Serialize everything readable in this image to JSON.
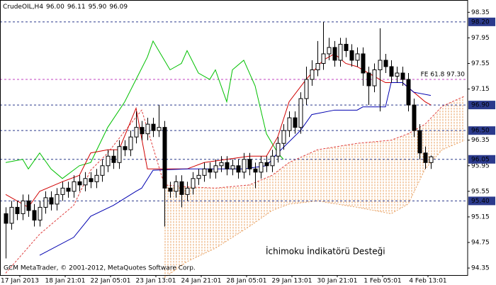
{
  "chart_data": {
    "type": "candlestick",
    "title": "CrudeOIL,H4",
    "last_values_labels": [
      "96.00",
      "96.11",
      "95.90",
      "96.09"
    ],
    "footer": "GCM MetaTrader, © 2001-2012, MetaQuotes Software Corp.",
    "annotation": "İchimoku İndikatörü Desteği",
    "ylim": [
      94.24,
      98.52
    ],
    "xlim": [
      -1,
      81.5
    ],
    "yticks": [
      98.35,
      97.95,
      97.55,
      97.15,
      96.35,
      95.95,
      95.55,
      95.15,
      94.75,
      94.35
    ],
    "xticks": [
      {
        "value": 3,
        "label": "17 Jan 2013"
      },
      {
        "value": 11,
        "label": "18 Jan 21:01"
      },
      {
        "value": 19,
        "label": "22 Jan 05:01"
      },
      {
        "value": 27,
        "label": "23 Jan 13:01"
      },
      {
        "value": 35,
        "label": "24 Jan 21:01"
      },
      {
        "value": 43,
        "label": "28 Jan 05:01"
      },
      {
        "value": 51,
        "label": "29 Jan 13:01"
      },
      {
        "value": 59,
        "label": "30 Jan 21:01"
      },
      {
        "value": 67,
        "label": "1 Feb 05:01"
      },
      {
        "value": 75,
        "label": "4 Feb 13:01"
      }
    ],
    "candles": {
      "up_color": "#ffffff",
      "down_color": "#000000",
      "edge_color": "#000000",
      "open": [
        95.2,
        95.05,
        95.3,
        95.2,
        95.4,
        95.25,
        95.1,
        95.3,
        95.45,
        95.35,
        95.5,
        95.6,
        95.55,
        95.7,
        95.65,
        95.75,
        95.7,
        95.8,
        95.95,
        96.1,
        96.0,
        96.25,
        96.2,
        96.4,
        96.55,
        96.45,
        96.6,
        96.5,
        96.55,
        95.6,
        95.55,
        95.7,
        95.5,
        95.6,
        95.75,
        95.8,
        95.9,
        95.85,
        95.95,
        96.0,
        95.9,
        95.95,
        95.85,
        96.05,
        95.9,
        95.85,
        96.0,
        95.95,
        96.1,
        96.3,
        96.5,
        96.7,
        96.55,
        97.0,
        97.3,
        97.45,
        97.55,
        97.7,
        97.8,
        97.6,
        97.85,
        97.75,
        97.6,
        97.7,
        97.4,
        97.2,
        97.45,
        97.6,
        97.5,
        97.35,
        97.4,
        97.3,
        96.9,
        96.5,
        96.15,
        96.0
      ],
      "high": [
        95.3,
        95.4,
        95.4,
        95.5,
        95.5,
        95.35,
        95.4,
        95.55,
        95.55,
        95.6,
        95.7,
        95.7,
        95.8,
        95.8,
        95.85,
        95.85,
        95.9,
        96.05,
        96.2,
        96.2,
        96.35,
        96.35,
        96.5,
        96.8,
        96.65,
        96.7,
        96.7,
        96.9,
        96.65,
        95.7,
        95.8,
        95.8,
        95.7,
        95.85,
        95.9,
        96.0,
        96.0,
        96.05,
        96.1,
        96.1,
        96.05,
        96.05,
        96.15,
        96.15,
        96.0,
        96.1,
        96.1,
        96.2,
        96.4,
        96.6,
        96.8,
        96.8,
        97.1,
        97.5,
        97.6,
        97.9,
        98.2,
        97.95,
        97.9,
        97.95,
        97.95,
        97.85,
        97.8,
        97.8,
        97.5,
        97.55,
        98.1,
        97.7,
        97.6,
        97.5,
        97.5,
        97.4,
        97.0,
        96.6,
        96.25,
        96.11
      ],
      "low": [
        94.5,
        94.95,
        95.1,
        95.1,
        95.15,
        95.0,
        95.0,
        95.2,
        95.25,
        95.25,
        95.4,
        95.45,
        95.45,
        95.55,
        95.55,
        95.6,
        95.6,
        95.7,
        95.85,
        95.9,
        95.9,
        96.1,
        96.1,
        96.3,
        96.35,
        96.35,
        96.4,
        96.4,
        95.0,
        95.45,
        95.45,
        95.3,
        95.4,
        95.5,
        95.65,
        95.7,
        95.75,
        95.75,
        95.85,
        95.8,
        95.8,
        95.75,
        95.75,
        95.8,
        95.6,
        95.75,
        95.85,
        95.85,
        96.0,
        96.2,
        96.4,
        96.45,
        96.45,
        96.9,
        97.2,
        97.35,
        97.45,
        97.6,
        97.5,
        97.5,
        97.65,
        97.5,
        97.5,
        97.2,
        96.9,
        97.1,
        96.8,
        97.4,
        97.25,
        97.25,
        97.2,
        96.8,
        96.4,
        96.05,
        95.9,
        95.9
      ],
      "close": [
        95.05,
        95.3,
        95.2,
        95.4,
        95.25,
        95.1,
        95.3,
        95.45,
        95.35,
        95.5,
        95.6,
        95.55,
        95.7,
        95.65,
        95.75,
        95.7,
        95.8,
        95.95,
        96.1,
        96.0,
        96.25,
        96.2,
        96.4,
        96.55,
        96.45,
        96.6,
        96.5,
        96.55,
        95.6,
        95.55,
        95.7,
        95.5,
        95.6,
        95.75,
        95.8,
        95.9,
        95.85,
        95.95,
        96.0,
        95.9,
        95.95,
        95.85,
        96.05,
        95.9,
        95.85,
        96.0,
        95.95,
        96.1,
        96.3,
        96.5,
        96.7,
        96.55,
        97.0,
        97.3,
        97.45,
        97.55,
        97.7,
        97.8,
        97.6,
        97.85,
        97.75,
        97.6,
        97.7,
        97.4,
        97.2,
        97.45,
        97.6,
        97.5,
        97.35,
        97.4,
        97.3,
        96.9,
        96.5,
        96.15,
        96.0,
        96.09
      ]
    },
    "cloud": {
      "color": "#e8a060",
      "x": [
        0,
        6,
        12,
        15,
        18,
        21,
        24,
        28,
        32,
        37,
        43,
        47,
        50,
        55,
        62,
        68,
        71,
        74,
        77,
        81
      ],
      "span_a": [
        94.27,
        94.88,
        95.33,
        95.88,
        96.15,
        96.49,
        96.82,
        95.65,
        95.62,
        95.6,
        95.65,
        95.8,
        96.0,
        96.2,
        96.3,
        96.35,
        96.45,
        96.6,
        96.88,
        97.04
      ],
      "span_b": [
        null,
        null,
        null,
        null,
        null,
        null,
        null,
        94.2,
        94.45,
        94.66,
        95.0,
        95.25,
        95.35,
        95.4,
        95.3,
        95.2,
        95.35,
        95.9,
        96.2,
        96.35
      ]
    },
    "series": [
      {
        "color": "#00c000",
        "x": [
          0,
          3,
          4,
          6,
          8,
          10,
          13,
          15,
          18,
          21,
          23,
          25,
          26,
          27,
          29,
          31,
          32,
          34,
          36,
          37,
          39,
          40,
          42,
          44,
          46,
          48,
          49
        ],
        "values": [
          96.0,
          96.05,
          95.9,
          96.15,
          95.9,
          95.75,
          95.95,
          96.0,
          96.55,
          96.95,
          97.3,
          97.65,
          97.9,
          97.75,
          97.45,
          97.55,
          97.75,
          97.4,
          97.3,
          97.45,
          96.95,
          97.45,
          97.6,
          97.2,
          96.45,
          96.15,
          96.05
        ]
      },
      {
        "color": "#d00000",
        "x": [
          0,
          4,
          6,
          10,
          13,
          15,
          18,
          20,
          23,
          25,
          27,
          32,
          35,
          39,
          43,
          46,
          48,
          50,
          53,
          56,
          58,
          60,
          62,
          64,
          67,
          70,
          72,
          74,
          75
        ],
        "values": [
          95.5,
          95.3,
          95.55,
          95.7,
          95.8,
          96.15,
          96.2,
          96.2,
          96.85,
          95.9,
          95.9,
          95.9,
          96.0,
          96.05,
          96.1,
          96.1,
          96.4,
          96.95,
          97.3,
          97.6,
          97.7,
          97.55,
          97.5,
          97.4,
          97.25,
          97.25,
          97.1,
          96.95,
          96.9
        ]
      },
      {
        "color": "#0000b0",
        "x": [
          6,
          12,
          15,
          19,
          23,
          24,
          26,
          32,
          37,
          42,
          46,
          48,
          52,
          54,
          58,
          62,
          63,
          67,
          68,
          70,
          72,
          75
        ],
        "values": [
          94.55,
          94.83,
          95.16,
          95.33,
          95.55,
          95.6,
          95.88,
          95.9,
          95.9,
          95.9,
          95.95,
          96.15,
          96.5,
          96.75,
          96.82,
          96.82,
          96.87,
          96.87,
          97.25,
          97.25,
          97.1,
          97.05
        ]
      }
    ],
    "levels": {
      "color": "#2b3a8c",
      "items": [
        {
          "value": 98.2,
          "label": "98.20"
        },
        {
          "value": 96.9,
          "label": "96.90"
        },
        {
          "value": 96.5,
          "label": "96.50"
        },
        {
          "value": 96.05,
          "label": "96.05"
        },
        {
          "value": 95.4,
          "label": "95.40"
        }
      ]
    },
    "fibo": {
      "value": 97.3,
      "label": "FE 61.8 97.30",
      "color": "#c040c0"
    }
  }
}
